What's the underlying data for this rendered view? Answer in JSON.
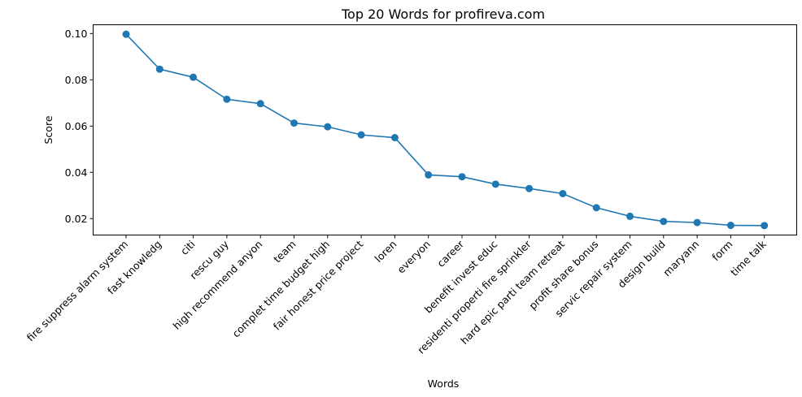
{
  "chart_data": {
    "type": "line",
    "title": "Top 20 Words for profireva.com",
    "xlabel": "Words",
    "ylabel": "Score",
    "categories": [
      "fire suppress alarm system",
      "fast knowledg",
      "citi",
      "rescu guy",
      "high recommend anyon",
      "team",
      "complet time budget high",
      "fair honest price project",
      "loren",
      "everyon",
      "career",
      "benefit invest educ",
      "residenti properti fire sprinkler",
      "hard epic parti team retreat",
      "profit share bonus",
      "servic repair system",
      "design build",
      "maryann",
      "form",
      "time talk"
    ],
    "series": [
      {
        "values": [
          0.0997,
          0.0846,
          0.0811,
          0.0716,
          0.0697,
          0.0613,
          0.0597,
          0.0562,
          0.055,
          0.0389,
          0.0381,
          0.0349,
          0.033,
          0.0308,
          0.0247,
          0.021,
          0.0188,
          0.0183,
          0.0171,
          0.017
        ],
        "color": "#1f77b4"
      }
    ],
    "yticks": [
      "0.02",
      "0.04",
      "0.06",
      "0.08",
      "0.10"
    ],
    "ylim": [
      0.0129,
      0.1038
    ],
    "grid": false,
    "legend": "none"
  }
}
